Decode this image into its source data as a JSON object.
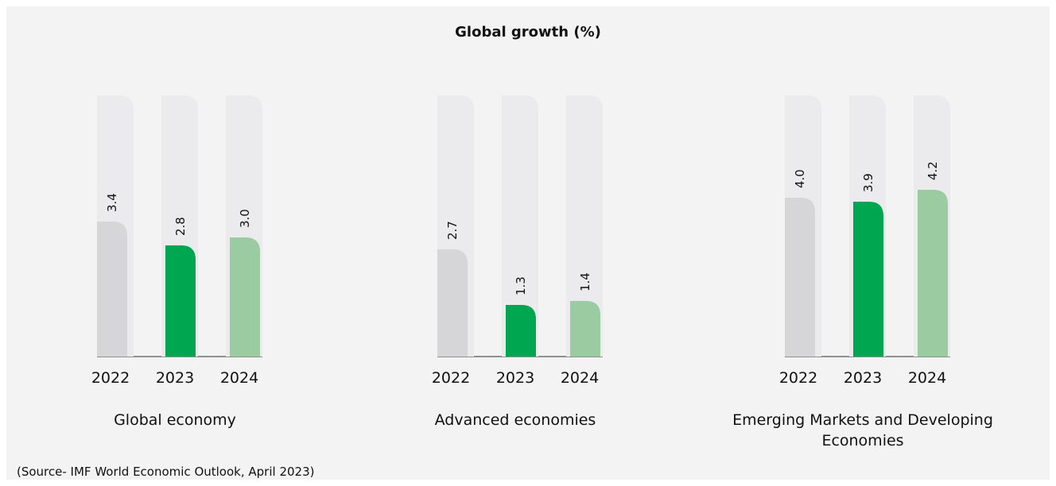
{
  "title": "Global growth (%)",
  "source": "(Source- IMF World Economic Outlook, April 2023)",
  "colors": {
    "panel_background": "#f3f3f4",
    "track": "#ebebed",
    "bar_2022": "#d6d6d8",
    "bar_2023": "#00a650",
    "bar_2024": "#9bcba0",
    "baseline": "#555555"
  },
  "chart_data": [
    {
      "type": "bar",
      "title": "Global economy",
      "categories": [
        "2022",
        "2023",
        "2024"
      ],
      "values": [
        3.4,
        2.8,
        3.0
      ],
      "value_labels": [
        "3.4",
        "2.8",
        "3.0"
      ]
    },
    {
      "type": "bar",
      "title": "Advanced economies",
      "categories": [
        "2022",
        "2023",
        "2024"
      ],
      "values": [
        2.7,
        1.3,
        1.4
      ],
      "value_labels": [
        "2.7",
        "1.3",
        "1.4"
      ]
    },
    {
      "type": "bar",
      "title": "Emerging Markets and Developing Economies",
      "categories": [
        "2022",
        "2023",
        "2024"
      ],
      "values": [
        4.0,
        3.9,
        4.2
      ],
      "value_labels": [
        "4.0",
        "3.9",
        "4.2"
      ]
    }
  ]
}
